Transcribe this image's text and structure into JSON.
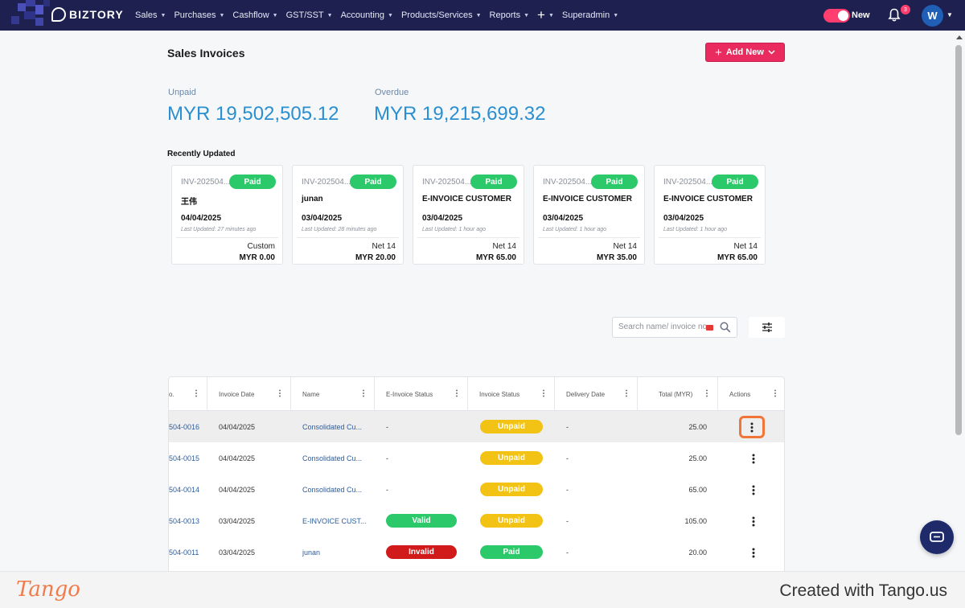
{
  "nav": {
    "brand": "BIZTORY",
    "menu": [
      {
        "label": "Sales"
      },
      {
        "label": "Purchases"
      },
      {
        "label": "Cashflow"
      },
      {
        "label": "GST/SST"
      },
      {
        "label": "Accounting"
      },
      {
        "label": "Products/Services"
      },
      {
        "label": "Reports"
      },
      {
        "label": "+"
      },
      {
        "label": "Superadmin"
      }
    ],
    "toggle_label": "New",
    "notification_count": "3",
    "avatar_initial": "W"
  },
  "header": {
    "title": "Sales Invoices",
    "add_new_label": "Add New"
  },
  "summary": {
    "unpaid_label": "Unpaid",
    "unpaid_value": "MYR 19,502,505.12",
    "overdue_label": "Overdue",
    "overdue_value": "MYR 19,215,699.32"
  },
  "recent": {
    "title": "Recently Updated",
    "cards": [
      {
        "inv": "INV-202504...",
        "status": "Paid",
        "name": "王伟",
        "date": "04/04/2025",
        "updated": "Last Updated: 27 minutes ago",
        "term": "Custom",
        "amount": "MYR 0.00"
      },
      {
        "inv": "INV-202504...",
        "status": "Paid",
        "name": "junan",
        "date": "03/04/2025",
        "updated": "Last Updated: 28 minutes ago",
        "term": "Net 14",
        "amount": "MYR 20.00"
      },
      {
        "inv": "INV-202504...",
        "status": "Paid",
        "name": "E-INVOICE CUSTOMER",
        "date": "03/04/2025",
        "updated": "Last Updated: 1 hour ago",
        "term": "Net 14",
        "amount": "MYR 65.00"
      },
      {
        "inv": "INV-202504...",
        "status": "Paid",
        "name": "E-INVOICE CUSTOMER",
        "date": "03/04/2025",
        "updated": "Last Updated: 1 hour ago",
        "term": "Net 14",
        "amount": "MYR 35.00"
      },
      {
        "inv": "INV-202504...",
        "status": "Paid",
        "name": "E-INVOICE CUSTOMER",
        "date": "03/04/2025",
        "updated": "Last Updated: 1 hour ago",
        "term": "Net 14",
        "amount": "MYR 65.00"
      }
    ]
  },
  "search": {
    "placeholder": "Search name/ invoice no."
  },
  "table": {
    "columns": [
      "o.",
      "Invoice Date",
      "Name",
      "E-Invoice Status",
      "Invoice Status",
      "Delivery Date",
      "Total (MYR)",
      "Actions"
    ],
    "rows": [
      {
        "no": "504-0016",
        "date": "04/04/2025",
        "name": "Consolidated Cu...",
        "einvoice": "-",
        "status": "Unpaid",
        "delivery": "-",
        "total": "25.00"
      },
      {
        "no": "504-0015",
        "date": "04/04/2025",
        "name": "Consolidated Cu...",
        "einvoice": "-",
        "status": "Unpaid",
        "delivery": "-",
        "total": "25.00"
      },
      {
        "no": "504-0014",
        "date": "04/04/2025",
        "name": "Consolidated Cu...",
        "einvoice": "-",
        "status": "Unpaid",
        "delivery": "-",
        "total": "65.00"
      },
      {
        "no": "504-0013",
        "date": "03/04/2025",
        "name": "E-INVOICE CUST...",
        "einvoice": "Valid",
        "status": "Unpaid",
        "delivery": "-",
        "total": "105.00"
      },
      {
        "no": "504-0011",
        "date": "03/04/2025",
        "name": "junan",
        "einvoice": "Invalid",
        "status": "Paid",
        "delivery": "-",
        "total": "20.00"
      }
    ]
  },
  "footer": {
    "logo": "Tango",
    "credit": "Created with Tango.us"
  },
  "colors": {
    "nav_bg": "#1e2150",
    "accent": "#e92b5f",
    "paid": "#2cc96a",
    "unpaid": "#f2c214",
    "invalid": "#d11b1b",
    "link": "#2c5d9c",
    "summary": "#2a8fd0",
    "focus": "#f07536"
  }
}
